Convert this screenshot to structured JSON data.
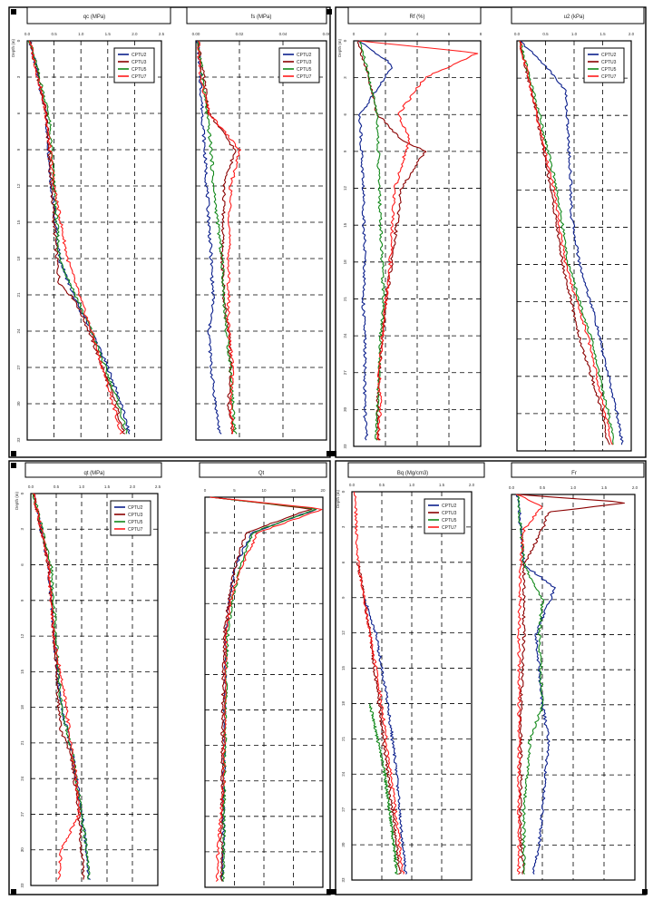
{
  "colors": {
    "CPTU2": "#0b1f8c",
    "CPTU3": "#8b0000",
    "CPTU5": "#12891a",
    "CPTU7": "#ff1a1a",
    "gauge": "#11577f"
  },
  "chart_data": [
    {
      "id": "top-1",
      "type": "line",
      "title": "qc (MPa)",
      "xlabel": "qc (MPa)",
      "ylabel": "Depth (m)",
      "xticks": [
        "0.0",
        "0.5",
        "1.0",
        "1.5",
        "2.0",
        "2.5"
      ],
      "xlim": [
        0,
        2.5
      ],
      "ylim": [
        0,
        33
      ],
      "yticks": [
        "0",
        "3",
        "6",
        "9",
        "12",
        "15",
        "18",
        "21",
        "24",
        "27",
        "30",
        "33"
      ],
      "grid": true,
      "legend_position": "top-right",
      "series": [
        {
          "name": "CPTU2",
          "color_key": "CPTU2",
          "depth": [
            0,
            6,
            12,
            18,
            21.5,
            24,
            27,
            30,
            32.5
          ],
          "values": [
            0.05,
            0.35,
            0.45,
            0.6,
            0.9,
            1.2,
            1.5,
            1.75,
            1.9
          ]
        },
        {
          "name": "CPTU3",
          "color_key": "CPTU3",
          "depth": [
            0,
            6,
            12,
            18,
            20,
            21.5,
            24,
            27,
            30,
            32.5
          ],
          "values": [
            0.05,
            0.35,
            0.45,
            0.55,
            0.6,
            0.9,
            1.15,
            1.4,
            1.65,
            1.8
          ]
        },
        {
          "name": "CPTU5",
          "color_key": "CPTU5",
          "depth": [
            0,
            6,
            12,
            18,
            21.5,
            24,
            27,
            30,
            32.5
          ],
          "values": [
            0.05,
            0.4,
            0.5,
            0.6,
            0.95,
            1.2,
            1.45,
            1.7,
            1.85
          ]
        },
        {
          "name": "CPTU7",
          "color_key": "CPTU7",
          "depth": [
            0,
            6,
            12,
            18,
            21.5,
            24,
            27,
            30,
            32.5
          ],
          "values": [
            0.05,
            0.35,
            0.5,
            0.75,
            1.0,
            1.2,
            1.4,
            1.6,
            1.75
          ]
        }
      ]
    },
    {
      "id": "top-2",
      "type": "line",
      "title": "fs (MPa)",
      "xlabel": "fs (MPa)",
      "ylabel": "",
      "xticks": [
        "0.00",
        "0.02",
        "0.04",
        "0.06"
      ],
      "xlim": [
        0,
        0.06
      ],
      "ylim": [
        0,
        33
      ],
      "yticks": [],
      "grid": true,
      "legend_position": "top-right",
      "series": [
        {
          "name": "CPTU2",
          "color_key": "CPTU2",
          "depth": [
            0,
            6,
            12,
            18,
            21.5,
            24,
            27,
            30,
            32.5
          ],
          "values": [
            0.001,
            0.003,
            0.005,
            0.007,
            0.008,
            0.006,
            0.007,
            0.009,
            0.011
          ]
        },
        {
          "name": "CPTU3",
          "color_key": "CPTU3",
          "depth": [
            0,
            6,
            9,
            12,
            18,
            21.5,
            24,
            27,
            30,
            32.5
          ],
          "values": [
            0.001,
            0.006,
            0.018,
            0.013,
            0.012,
            0.013,
            0.015,
            0.016,
            0.015,
            0.017
          ]
        },
        {
          "name": "CPTU5",
          "color_key": "CPTU5",
          "depth": [
            0,
            6,
            9,
            12,
            18,
            21.5,
            24,
            27,
            30,
            32.5
          ],
          "values": [
            0.001,
            0.005,
            0.007,
            0.008,
            0.012,
            0.013,
            0.014,
            0.016,
            0.017,
            0.018
          ]
        },
        {
          "name": "CPTU7",
          "color_key": "CPTU7",
          "depth": [
            0,
            3,
            6,
            9,
            12,
            18,
            21.5,
            24,
            27,
            30,
            32.5
          ],
          "values": [
            0.001,
            0.002,
            0.006,
            0.02,
            0.016,
            0.015,
            0.015,
            0.015,
            0.017,
            0.016,
            0.017
          ]
        }
      ]
    },
    {
      "id": "top-3",
      "type": "line",
      "title": "Rf (%)",
      "xlabel": "Rf (%)",
      "ylabel": "Depth (m)",
      "xticks": [
        "0",
        "2",
        "4",
        "6",
        "8"
      ],
      "xlim": [
        0,
        8
      ],
      "ylim": [
        0,
        33
      ],
      "yticks": [
        "0",
        "3",
        "6",
        "9",
        "12",
        "15",
        "18",
        "21",
        "24",
        "27",
        "30",
        "33"
      ],
      "grid": true,
      "legend_position": "none",
      "series": [
        {
          "name": "CPTU2",
          "color_key": "CPTU2",
          "depth": [
            0,
            2,
            6,
            12,
            18,
            21.5,
            24,
            27,
            30,
            32.5
          ],
          "values": [
            0.3,
            2.5,
            0.4,
            0.6,
            0.7,
            0.6,
            0.7,
            0.7,
            0.7,
            0.8
          ]
        },
        {
          "name": "CPTU3",
          "color_key": "CPTU3",
          "depth": [
            0,
            6,
            8,
            9,
            12,
            18,
            21.5,
            24,
            27,
            30,
            32.5
          ],
          "values": [
            0.3,
            1.5,
            3.0,
            4.5,
            3.0,
            2.4,
            2.0,
            1.8,
            1.6,
            1.5,
            1.6
          ]
        },
        {
          "name": "CPTU5",
          "color_key": "CPTU5",
          "depth": [
            0,
            6,
            12,
            18,
            21.5,
            24,
            27,
            30,
            32.5
          ],
          "values": [
            0.4,
            1.5,
            1.6,
            1.8,
            1.9,
            1.7,
            1.6,
            1.5,
            1.4
          ]
        },
        {
          "name": "CPTU7",
          "color_key": "CPTU7",
          "depth": [
            0,
            1,
            3,
            6,
            8,
            12,
            18,
            21.5,
            24,
            27,
            30,
            32.5
          ],
          "values": [
            0.3,
            7.8,
            4.5,
            2.8,
            3.5,
            2.6,
            2.3,
            2.0,
            1.8,
            1.6,
            1.7,
            1.5
          ]
        }
      ]
    },
    {
      "id": "top-4",
      "type": "line",
      "title": "u2 (kPa)",
      "xlabel": "u2 (kPa)",
      "ylabel": "",
      "xticks": [
        "0.0",
        "0.5",
        "1.0",
        "1.5",
        "2.0"
      ],
      "xlim": [
        0,
        2.0
      ],
      "ylim": [
        0,
        33
      ],
      "yticks": [],
      "grid": true,
      "legend_position": "top-right",
      "series": [
        {
          "name": "CPTU2",
          "color_key": "CPTU2",
          "depth": [
            0,
            2,
            4,
            12,
            14,
            18,
            22,
            26,
            30,
            32.5
          ],
          "values": [
            0.05,
            0.5,
            0.85,
            0.95,
            0.95,
            1.1,
            1.35,
            1.55,
            1.75,
            1.85
          ]
        },
        {
          "name": "CPTU3",
          "color_key": "CPTU3",
          "depth": [
            0,
            6,
            12,
            18,
            21,
            24,
            27,
            30,
            32.5
          ],
          "values": [
            0.05,
            0.35,
            0.6,
            0.8,
            0.95,
            1.1,
            1.3,
            1.5,
            1.6
          ]
        },
        {
          "name": "CPTU5",
          "color_key": "CPTU5",
          "depth": [
            0,
            6,
            12,
            18,
            21,
            24,
            27,
            30,
            32.5
          ],
          "values": [
            0.05,
            0.4,
            0.7,
            0.9,
            1.1,
            1.3,
            1.45,
            1.6,
            1.7
          ]
        },
        {
          "name": "CPTU7",
          "color_key": "CPTU7",
          "depth": [
            0,
            6,
            12,
            18,
            21,
            24,
            27,
            30,
            32.5
          ],
          "values": [
            0.05,
            0.35,
            0.65,
            0.85,
            1.05,
            1.25,
            1.4,
            1.55,
            1.65
          ]
        }
      ]
    },
    {
      "id": "bottom-1",
      "type": "line",
      "title": "qt (MPa)",
      "xlabel": "qt (MPa)",
      "ylabel": "Depth (m)",
      "xticks": [
        "0.0",
        "0.5",
        "1.0",
        "1.5",
        "2.0",
        "2.5"
      ],
      "xlim": [
        0,
        2.5
      ],
      "ylim": [
        0,
        33
      ],
      "yticks": [
        "0",
        "3",
        "6",
        "9",
        "12",
        "15",
        "18",
        "21",
        "24",
        "27",
        "30",
        "33"
      ],
      "grid": true,
      "legend_position": "top-right",
      "series": [
        {
          "name": "CPTU2",
          "color_key": "CPTU2",
          "depth": [
            0,
            6,
            12,
            18,
            21.5,
            24,
            27,
            30,
            32.5
          ],
          "values": [
            0.05,
            0.35,
            0.45,
            0.6,
            0.8,
            0.9,
            1.0,
            1.1,
            1.15
          ]
        },
        {
          "name": "CPTU3",
          "color_key": "CPTU3",
          "depth": [
            0,
            6,
            12,
            18,
            20,
            21.5,
            24,
            27,
            30,
            32.5
          ],
          "values": [
            0.05,
            0.35,
            0.45,
            0.55,
            0.6,
            0.75,
            0.85,
            0.95,
            1.0,
            1.05
          ]
        },
        {
          "name": "CPTU5",
          "color_key": "CPTU5",
          "depth": [
            0,
            6,
            12,
            18,
            21.5,
            24,
            27,
            30,
            32.5
          ],
          "values": [
            0.05,
            0.4,
            0.5,
            0.6,
            0.8,
            0.9,
            1.0,
            1.1,
            1.15
          ]
        },
        {
          "name": "CPTU7",
          "color_key": "CPTU7",
          "depth": [
            0,
            6,
            12,
            18,
            21.5,
            24,
            27,
            30,
            32.5
          ],
          "values": [
            0.05,
            0.35,
            0.45,
            0.7,
            0.8,
            0.9,
            0.95,
            0.6,
            0.55
          ]
        }
      ]
    },
    {
      "id": "bottom-2",
      "type": "line",
      "title": "Qt",
      "xlabel": "Qt",
      "ylabel": "",
      "xticks": [
        "0",
        "5",
        "10",
        "15",
        "20"
      ],
      "xlim": [
        0,
        20
      ],
      "ylim": [
        0,
        33
      ],
      "yticks": [],
      "grid": true,
      "legend_position": "none",
      "series": [
        {
          "name": "CPTU2",
          "color_key": "CPTU2",
          "depth": [
            0,
            1,
            3,
            6,
            9,
            12,
            18,
            24,
            30,
            32.5
          ],
          "values": [
            1,
            19,
            8,
            5,
            4,
            3.5,
            3.3,
            3.2,
            3.1,
            3.0
          ]
        },
        {
          "name": "CPTU3",
          "color_key": "CPTU3",
          "depth": [
            0,
            1,
            3,
            6,
            9,
            12,
            18,
            24,
            30,
            32.5
          ],
          "values": [
            1,
            18,
            7,
            5,
            4,
            3.2,
            3.0,
            2.9,
            2.8,
            2.8
          ]
        },
        {
          "name": "CPTU5",
          "color_key": "CPTU5",
          "depth": [
            0,
            1,
            3,
            6,
            9,
            12,
            18,
            24,
            30,
            32.5
          ],
          "values": [
            1,
            19,
            8,
            6,
            4.5,
            3.8,
            3.5,
            3.3,
            3.2,
            3.1
          ]
        },
        {
          "name": "CPTU7",
          "color_key": "CPTU7",
          "depth": [
            0,
            1,
            3,
            6,
            9,
            12,
            18,
            24,
            30,
            32.5
          ],
          "values": [
            1,
            20,
            9,
            6,
            4.2,
            3.6,
            3.4,
            3.2,
            2.2,
            2.0
          ]
        }
      ]
    },
    {
      "id": "bottom-3",
      "type": "line",
      "title": "Bq (Mg/cm3)",
      "xlabel": "Bq (Mg/cm3)",
      "ylabel": "Depth (m)",
      "xticks": [
        "0.0",
        "0.5",
        "1.0",
        "1.5",
        "2.0"
      ],
      "xlim": [
        0,
        2.0
      ],
      "ylim": [
        0,
        33
      ],
      "yticks": [
        "0",
        "3",
        "6",
        "9",
        "12",
        "15",
        "18",
        "21",
        "24",
        "27",
        "30",
        "33"
      ],
      "grid": true,
      "legend_position": "top-right",
      "series": [
        {
          "name": "CPTU2",
          "color_key": "CPTU2",
          "depth": [
            9,
            12,
            18,
            24,
            30,
            32.5
          ],
          "values": [
            0.2,
            0.4,
            0.6,
            0.75,
            0.85,
            0.9
          ]
        },
        {
          "name": "CPTU3",
          "color_key": "CPTU3",
          "depth": [
            6,
            12,
            18,
            24,
            30,
            32.5
          ],
          "values": [
            0.1,
            0.3,
            0.45,
            0.6,
            0.75,
            0.8
          ]
        },
        {
          "name": "CPTU5",
          "color_key": "CPTU5",
          "depth": [
            18,
            24,
            30,
            32.5
          ],
          "values": [
            0.3,
            0.55,
            0.7,
            0.75
          ]
        },
        {
          "name": "CPTU7",
          "color_key": "CPTU7",
          "depth": [
            0,
            6,
            12,
            18,
            24,
            30,
            32.5
          ],
          "values": [
            0.05,
            0.1,
            0.3,
            0.5,
            0.65,
            0.8,
            0.85
          ]
        }
      ]
    },
    {
      "id": "bottom-4",
      "type": "line",
      "title": "Fr",
      "xlabel": "Fr",
      "ylabel": "",
      "xticks": [
        "0.0",
        "0.5",
        "1.0",
        "1.5",
        "2.0"
      ],
      "xlim": [
        0,
        2.0
      ],
      "ylim": [
        0,
        33
      ],
      "yticks": [],
      "grid": true,
      "legend_position": "none",
      "series": [
        {
          "name": "CPTU2",
          "color_key": "CPTU2",
          "depth": [
            0,
            6,
            8,
            12,
            18,
            21,
            24,
            27,
            30,
            32.5
          ],
          "values": [
            0.1,
            0.2,
            0.7,
            0.4,
            0.5,
            0.6,
            0.55,
            0.5,
            0.45,
            0.35
          ]
        },
        {
          "name": "CPTU3",
          "color_key": "CPTU3",
          "depth": [
            0,
            0.7,
            1.5,
            3,
            6,
            12,
            18,
            24,
            30,
            32.5
          ],
          "values": [
            0.1,
            1.9,
            0.6,
            0.5,
            0.2,
            0.2,
            0.15,
            0.15,
            0.15,
            0.2
          ]
        },
        {
          "name": "CPTU5",
          "color_key": "CPTU5",
          "depth": [
            0,
            6,
            9,
            12,
            18,
            21,
            24,
            27,
            30,
            32.5
          ],
          "values": [
            0.1,
            0.2,
            0.5,
            0.45,
            0.5,
            0.3,
            0.25,
            0.2,
            0.2,
            0.2
          ]
        },
        {
          "name": "CPTU7",
          "color_key": "CPTU7",
          "depth": [
            0,
            1,
            3,
            6,
            12,
            18,
            24,
            30,
            32.5
          ],
          "values": [
            0.1,
            0.5,
            0.2,
            0.15,
            0.12,
            0.12,
            0.12,
            0.12,
            0.12
          ]
        }
      ]
    }
  ]
}
